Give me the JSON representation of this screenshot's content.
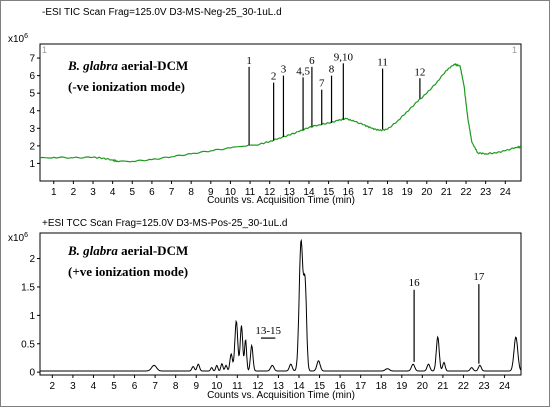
{
  "chart_data": [
    {
      "type": "line",
      "header": "-ESI TIC Scan Frag=125.0V D3-MS-Neg-25_30-1uL.d",
      "corner_left": "1",
      "corner_right": "1",
      "y_multiplier_base": "x10",
      "y_multiplier_exp": "6",
      "species": "B. glabra",
      "title_rest": " aerial-DCM",
      "mode_label": "(-ve ionization mode)",
      "xlabel": "Counts vs. Acquisition Time (min)",
      "xlim": [
        0.3,
        24.8
      ],
      "ylim": [
        0,
        7.8
      ],
      "xticks": [
        1,
        2,
        3,
        4,
        5,
        6,
        7,
        8,
        9,
        10,
        11,
        12,
        13,
        14,
        15,
        16,
        17,
        18,
        19,
        20,
        21,
        22,
        23,
        24
      ],
      "yticks": [
        1,
        2,
        3,
        4,
        5,
        6,
        7
      ],
      "points": [
        [
          0.3,
          1.3
        ],
        [
          1,
          1.35
        ],
        [
          2,
          1.32
        ],
        [
          3,
          1.35
        ],
        [
          3.5,
          1.3
        ],
        [
          4,
          1.2
        ],
        [
          4.3,
          1.1
        ],
        [
          5,
          1.12
        ],
        [
          6,
          1.22
        ],
        [
          7,
          1.38
        ],
        [
          8,
          1.55
        ],
        [
          9,
          1.72
        ],
        [
          10,
          1.88
        ],
        [
          10.8,
          1.98
        ],
        [
          11.5,
          2.1
        ],
        [
          12,
          2.25
        ],
        [
          12.5,
          2.45
        ],
        [
          13,
          2.62
        ],
        [
          13.5,
          2.82
        ],
        [
          14,
          3.05
        ],
        [
          14.5,
          3.2
        ],
        [
          15,
          3.3
        ],
        [
          15.5,
          3.45
        ],
        [
          15.9,
          3.55
        ],
        [
          16.3,
          3.4
        ],
        [
          16.8,
          3.2
        ],
        [
          17.2,
          3.0
        ],
        [
          17.6,
          2.88
        ],
        [
          18,
          2.95
        ],
        [
          18.5,
          3.4
        ],
        [
          19,
          3.95
        ],
        [
          19.5,
          4.5
        ],
        [
          20,
          5.0
        ],
        [
          20.5,
          5.6
        ],
        [
          21,
          6.3
        ],
        [
          21.4,
          6.65
        ],
        [
          21.7,
          6.55
        ],
        [
          21.9,
          5.4
        ],
        [
          22.1,
          3.5
        ],
        [
          22.3,
          2.2
        ],
        [
          22.6,
          1.6
        ],
        [
          23,
          1.55
        ],
        [
          23.5,
          1.6
        ],
        [
          24,
          1.72
        ],
        [
          24.5,
          1.9
        ],
        [
          24.8,
          1.95
        ]
      ],
      "peak_markers": [
        {
          "label": "1",
          "x": 10.95,
          "y0": 2.05,
          "y1": 6.5
        },
        {
          "label": "2",
          "x": 12.2,
          "y0": 2.3,
          "y1": 5.6
        },
        {
          "label": "3",
          "x": 12.7,
          "y0": 2.5,
          "y1": 6.0
        },
        {
          "label": "4,5",
          "x": 13.7,
          "y0": 2.9,
          "y1": 5.9
        },
        {
          "label": "6",
          "x": 14.15,
          "y0": 3.1,
          "y1": 6.5
        },
        {
          "label": "7",
          "x": 14.65,
          "y0": 3.2,
          "y1": 5.2
        },
        {
          "label": "8",
          "x": 15.15,
          "y0": 3.3,
          "y1": 6.0
        },
        {
          "label": "9,10",
          "x": 15.75,
          "y0": 3.5,
          "y1": 6.7
        },
        {
          "label": "11",
          "x": 17.75,
          "y0": 2.95,
          "y1": 6.4
        },
        {
          "label": "12",
          "x": 19.65,
          "y0": 4.7,
          "y1": 5.85
        }
      ]
    },
    {
      "type": "line",
      "header": "+ESI TCC Scan Frag=125.0V D3-MS-Pos-25_30-1uL.d",
      "y_multiplier_base": "x10",
      "y_multiplier_exp": "6",
      "species": "B. glabra",
      "title_rest": " aerial-DCM",
      "mode_label": "(+ve ionization mode)",
      "xlabel": "Counts vs. Acquisition Time (min)",
      "xlim": [
        1.4,
        24.8
      ],
      "ylim": [
        -0.05,
        2.45
      ],
      "xticks": [
        2,
        3,
        4,
        5,
        6,
        7,
        8,
        9,
        10,
        11,
        12,
        13,
        14,
        15,
        16,
        17,
        18,
        19,
        20,
        21,
        22,
        23,
        24
      ],
      "yticks": [
        0,
        0.5,
        1,
        1.5,
        2
      ],
      "baseline": 0.02,
      "peaks": [
        {
          "x": 6.95,
          "h": 0.1,
          "w": 0.12
        },
        {
          "x": 8.85,
          "h": 0.08,
          "w": 0.06
        },
        {
          "x": 9.1,
          "h": 0.12,
          "w": 0.06
        },
        {
          "x": 9.75,
          "h": 0.06,
          "w": 0.05
        },
        {
          "x": 10.0,
          "h": 0.1,
          "w": 0.05
        },
        {
          "x": 10.25,
          "h": 0.13,
          "w": 0.05
        },
        {
          "x": 10.45,
          "h": 0.1,
          "w": 0.05
        },
        {
          "x": 10.7,
          "h": 0.3,
          "w": 0.06
        },
        {
          "x": 10.95,
          "h": 0.88,
          "w": 0.07
        },
        {
          "x": 11.2,
          "h": 0.8,
          "w": 0.06
        },
        {
          "x": 11.4,
          "h": 0.55,
          "w": 0.05
        },
        {
          "x": 11.7,
          "h": 0.45,
          "w": 0.06
        },
        {
          "x": 12.7,
          "h": 0.1,
          "w": 0.08
        },
        {
          "x": 13.6,
          "h": 0.12,
          "w": 0.07
        },
        {
          "x": 14.1,
          "h": 2.28,
          "w": 0.09
        },
        {
          "x": 14.3,
          "h": 1.45,
          "w": 0.07
        },
        {
          "x": 14.95,
          "h": 0.18,
          "w": 0.08
        },
        {
          "x": 18.3,
          "h": 0.04,
          "w": 0.1
        },
        {
          "x": 19.55,
          "h": 0.12,
          "w": 0.08
        },
        {
          "x": 20.3,
          "h": 0.12,
          "w": 0.07
        },
        {
          "x": 20.75,
          "h": 0.6,
          "w": 0.07
        },
        {
          "x": 21.05,
          "h": 0.15,
          "w": 0.06
        },
        {
          "x": 22.4,
          "h": 0.06,
          "w": 0.07
        },
        {
          "x": 22.8,
          "h": 0.1,
          "w": 0.07
        },
        {
          "x": 24.55,
          "h": 0.6,
          "w": 0.09
        }
      ],
      "peak_markers": [
        {
          "label": "13-15",
          "x": 12.5,
          "bar_x0": 12.15,
          "bar_x1": 12.85,
          "bar_y": 0.6
        },
        {
          "label": "16",
          "x": 19.6,
          "y0": 0.18,
          "y1": 1.45
        },
        {
          "label": "17",
          "x": 22.75,
          "y0": 0.15,
          "y1": 1.55
        }
      ]
    }
  ]
}
